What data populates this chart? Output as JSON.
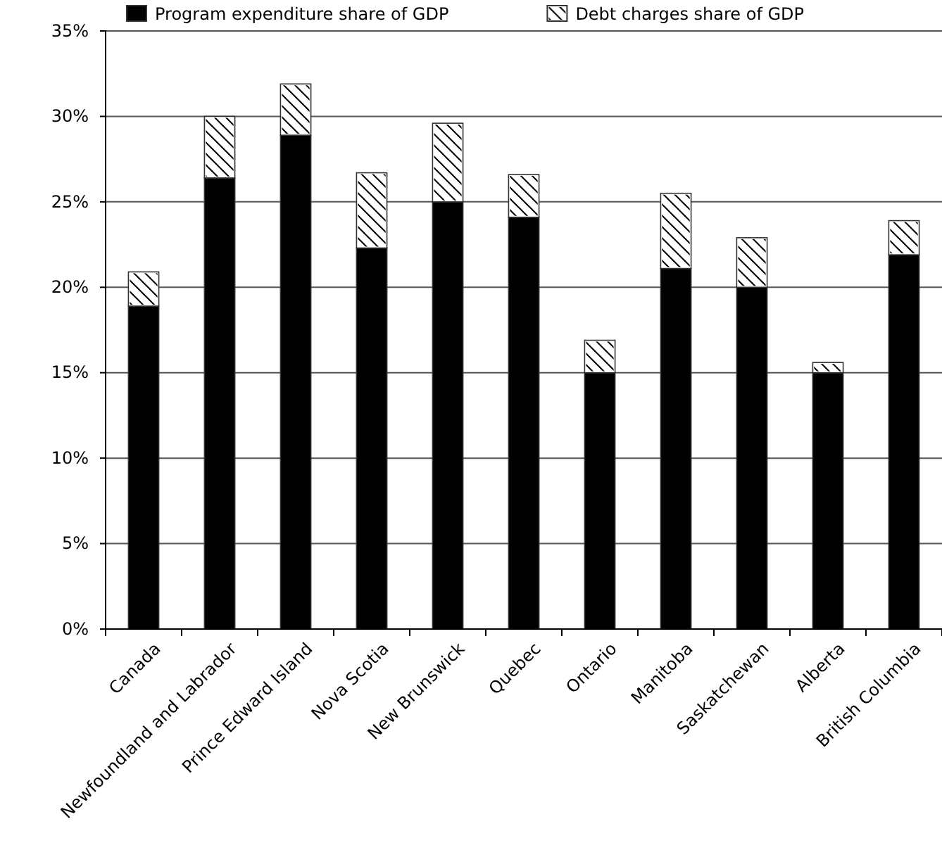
{
  "chart_data": {
    "type": "bar",
    "stacked": true,
    "categories": [
      "Canada",
      "Newfoundland and Labrador",
      "Prince Edward Island",
      "Nova Scotia",
      "New Brunswick",
      "Quebec",
      "Ontario",
      "Manitoba",
      "Saskatchewan",
      "Alberta",
      "British Columbia"
    ],
    "series": [
      {
        "name": "Program expenditure share of GDP",
        "color": "#000000",
        "values": [
          18.9,
          26.4,
          28.9,
          22.3,
          25.0,
          24.1,
          15.0,
          21.1,
          20.0,
          15.0,
          21.9
        ]
      },
      {
        "name": "Debt charges share of GDP",
        "color": "#ffffff",
        "values": [
          2.0,
          3.6,
          3.0,
          4.4,
          4.6,
          2.5,
          1.9,
          4.4,
          2.9,
          0.6,
          2.0
        ]
      }
    ],
    "ylim": [
      0,
      35
    ],
    "yticks": [
      {
        "value": 0,
        "label": "0%"
      },
      {
        "value": 5,
        "label": "5%"
      },
      {
        "value": 10,
        "label": "10%"
      },
      {
        "value": 15,
        "label": "15%"
      },
      {
        "value": 20,
        "label": "20%"
      },
      {
        "value": 25,
        "label": "25%"
      },
      {
        "value": 30,
        "label": "30%"
      },
      {
        "value": 35,
        "label": "35%"
      }
    ],
    "grid": "y",
    "legend": "top"
  }
}
